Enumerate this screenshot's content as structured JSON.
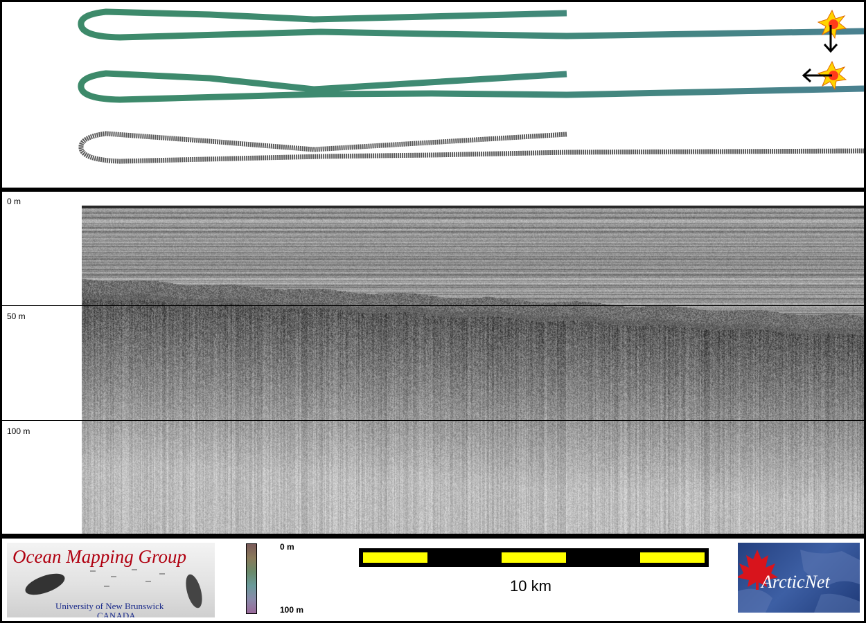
{
  "depth_axis": {
    "labels": [
      "0 m",
      "50 m",
      "100 m"
    ]
  },
  "legend": {
    "colorbar_top": "0 m",
    "colorbar_bottom": "100 m",
    "scale_label": "10 km"
  },
  "logos": {
    "omg_title": "Ocean Mapping Group",
    "omg_university": "University of New Brunswick",
    "omg_country": "CANADA",
    "arcticnet": "ArcticNet"
  },
  "icons": [
    "sun-marker-icon",
    "arrow-down-icon",
    "arrow-left-icon",
    "maple-leaf-icon"
  ],
  "colors": {
    "track_green": "#3d8a6a",
    "track_grey": "#555555",
    "scale_yellow": "#ffff00",
    "omg_red": "#b00010",
    "omg_blue": "#1a2a8a"
  }
}
